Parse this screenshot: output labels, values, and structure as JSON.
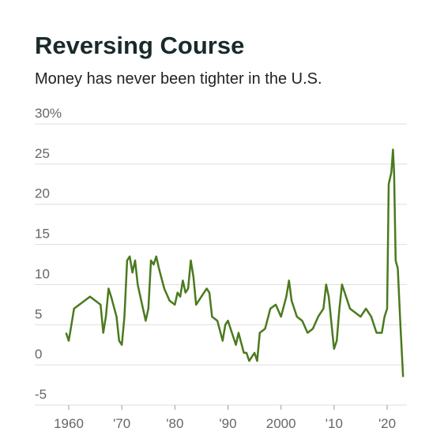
{
  "chart_data": {
    "type": "line",
    "title": "Reversing Course",
    "subtitle": "Money has never been tighter in the U.S.",
    "color": "#4a7a1e",
    "grid": true,
    "xlim": [
      1956,
      2025
    ],
    "ylim": [
      -5,
      30
    ],
    "yticks": [
      {
        "value": 30,
        "label": "30%"
      },
      25,
      20,
      15,
      10,
      5,
      0,
      -5
    ],
    "xticks": [
      1960,
      {
        "value": 1970,
        "label": "'70"
      },
      {
        "value": 1980,
        "label": "'80"
      },
      {
        "value": 1990,
        "label": "'90"
      },
      2000,
      {
        "value": 2010,
        "label": "'10"
      },
      {
        "value": 2020,
        "label": "'20"
      }
    ],
    "x": [
      1959.5,
      1960,
      1960.5,
      1961,
      1962,
      1963,
      1964,
      1965,
      1966,
      1966.5,
      1967,
      1967.5,
      1968,
      1969,
      1969.5,
      1970,
      1970.5,
      1971,
      1971.5,
      1972,
      1972.5,
      1973,
      1974,
      1974.5,
      1975,
      1975.5,
      1976,
      1976.5,
      1977,
      1978,
      1979,
      1980,
      1980.5,
      1981,
      1981.5,
      1982,
      1982.5,
      1983,
      1983.5,
      1984,
      1985,
      1986,
      1986.5,
      1987,
      1988,
      1989,
      1989.5,
      1990,
      1991,
      1991.5,
      1992,
      1993,
      1993.5,
      1994,
      1995,
      1995.5,
      1996,
      1997,
      1998,
      1999,
      2000,
      2001,
      2001.5,
      2002,
      2003,
      2004,
      2005,
      2006,
      2007,
      2008,
      2008.5,
      2009,
      2010,
      2010.5,
      2011,
      2011.5,
      2012,
      2013,
      2014,
      2015,
      2016,
      2017,
      2018,
      2019,
      2019.5,
      2020,
      2020.3,
      2020.8,
      2021.1,
      2021.3,
      2021.6,
      2022,
      2022.5,
      2023
    ],
    "values": [
      4,
      3,
      5,
      7,
      7.5,
      8,
      8.5,
      8,
      7.5,
      4,
      6,
      9.5,
      8.5,
      6,
      3,
      2.5,
      6,
      13,
      13.5,
      11.5,
      13,
      10,
      7,
      5.5,
      7,
      13,
      12.5,
      13.5,
      12,
      9.5,
      8,
      7.5,
      9,
      8.5,
      10.5,
      9,
      9.5,
      13,
      11,
      7.5,
      8.5,
      9.5,
      9,
      6,
      5.5,
      3,
      5,
      5.5,
      3.5,
      2.5,
      4,
      1.5,
      1.5,
      0.5,
      1.5,
      0.5,
      4,
      4.5,
      7,
      7.5,
      6,
      8.5,
      10.5,
      8,
      6,
      5.5,
      4,
      4.5,
      6,
      7,
      10,
      8.5,
      2,
      3,
      7,
      10,
      9,
      7,
      6.5,
      6,
      7,
      6,
      4,
      4,
      6,
      7,
      22.5,
      24,
      26.8,
      24,
      13,
      12,
      5,
      -1.5
    ]
  }
}
